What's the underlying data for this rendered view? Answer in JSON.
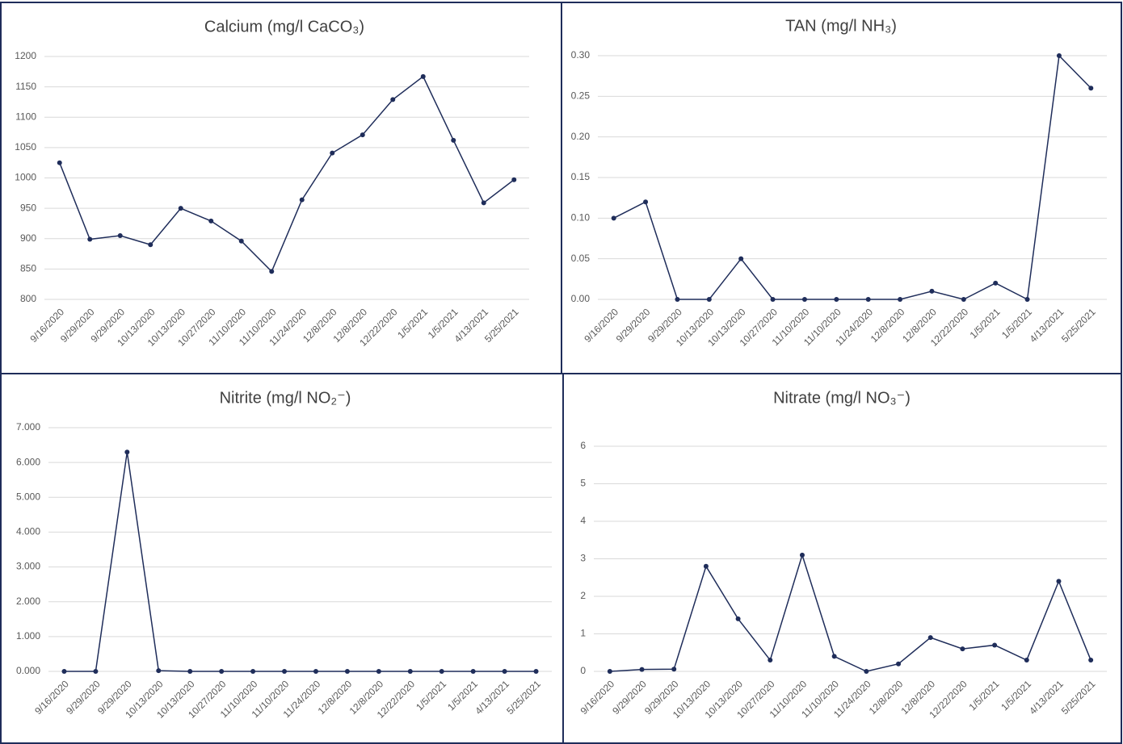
{
  "chart_data": [
    {
      "type": "line",
      "title": "Calcium (mg/l CaCO₃)",
      "categories": [
        "9/16/2020",
        "9/29/2020",
        "9/29/2020",
        "10/13/2020",
        "10/13/2020",
        "10/27/2020",
        "11/10/2020",
        "11/10/2020",
        "11/24/2020",
        "12/8/2020",
        "12/8/2020",
        "12/22/2020",
        "1/5/2021",
        "1/5/2021",
        "4/13/2021",
        "5/25/2021"
      ],
      "values": [
        1025,
        899,
        905,
        890,
        950,
        929,
        896,
        846,
        964,
        1041,
        1071,
        1129,
        1167,
        1062,
        959,
        997
      ],
      "color": "#1f2d5a",
      "ylim": [
        800,
        1200
      ],
      "yticks": [
        800,
        850,
        900,
        950,
        1000,
        1050,
        1100,
        1150,
        1200
      ],
      "grid": true
    },
    {
      "type": "line",
      "title": "TAN (mg/l NH₃)",
      "categories": [
        "9/16/2020",
        "9/29/2020",
        "9/29/2020",
        "10/13/2020",
        "10/13/2020",
        "10/27/2020",
        "11/10/2020",
        "11/10/2020",
        "11/24/2020",
        "12/8/2020",
        "12/8/2020",
        "12/22/2020",
        "1/5/2021",
        "1/5/2021",
        "4/13/2021",
        "5/25/2021"
      ],
      "values": [
        0.1,
        0.12,
        0,
        0,
        0.05,
        0,
        0,
        0,
        0,
        0,
        0.01,
        0,
        0.02,
        0,
        0.3,
        0.26
      ],
      "color": "#1f2d5a",
      "ylim": [
        0,
        0.3
      ],
      "yticks": [
        {
          "value": 0,
          "label": "0.00"
        },
        {
          "value": 0.05,
          "label": "0.05"
        },
        {
          "value": 0.1,
          "label": "0.10"
        },
        {
          "value": 0.15,
          "label": "0.15"
        },
        {
          "value": 0.2,
          "label": "0.20"
        },
        {
          "value": 0.25,
          "label": "0.25"
        },
        {
          "value": 0.3,
          "label": "0.30"
        }
      ],
      "grid": true
    },
    {
      "type": "line",
      "title": "Nitrite (mg/l NO₂⁻)",
      "categories": [
        "9/16/2020",
        "9/29/2020",
        "9/29/2020",
        "10/13/2020",
        "10/13/2020",
        "10/27/2020",
        "11/10/2020",
        "11/10/2020",
        "11/24/2020",
        "12/8/2020",
        "12/8/2020",
        "12/22/2020",
        "1/5/2021",
        "1/5/2021",
        "4/13/2021",
        "5/25/2021"
      ],
      "values": [
        0,
        0,
        6.3,
        0.02,
        0,
        0,
        0,
        0,
        0,
        0,
        0,
        0,
        0,
        0,
        0,
        0
      ],
      "color": "#1f2d5a",
      "ylim": [
        0,
        7
      ],
      "yticks": [
        {
          "value": 0,
          "label": "0.000"
        },
        {
          "value": 1,
          "label": "1.000"
        },
        {
          "value": 2,
          "label": "2.000"
        },
        {
          "value": 3,
          "label": "3.000"
        },
        {
          "value": 4,
          "label": "4.000"
        },
        {
          "value": 5,
          "label": "5.000"
        },
        {
          "value": 6,
          "label": "6.000"
        },
        {
          "value": 7,
          "label": "7.000"
        }
      ],
      "grid": true
    },
    {
      "type": "line",
      "title": "Nitrate (mg/l NO₃⁻)",
      "categories": [
        "9/16/2020",
        "9/29/2020",
        "9/29/2020",
        "10/13/2020",
        "10/13/2020",
        "10/27/2020",
        "11/10/2020",
        "11/10/2020",
        "11/24/2020",
        "12/8/2020",
        "12/8/2020",
        "12/22/2020",
        "1/5/2021",
        "1/5/2021",
        "4/13/2021",
        "5/25/2021"
      ],
      "values": [
        0,
        0.05,
        0.06,
        2.8,
        1.4,
        0.3,
        3.1,
        0.4,
        0,
        0.2,
        0.9,
        0.6,
        0.7,
        0.3,
        2.4,
        0.3
      ],
      "color": "#1f2d5a",
      "ylim": [
        0,
        6
      ],
      "yticks": [
        0,
        1,
        2,
        3,
        4,
        5,
        6
      ],
      "grid": true
    }
  ]
}
